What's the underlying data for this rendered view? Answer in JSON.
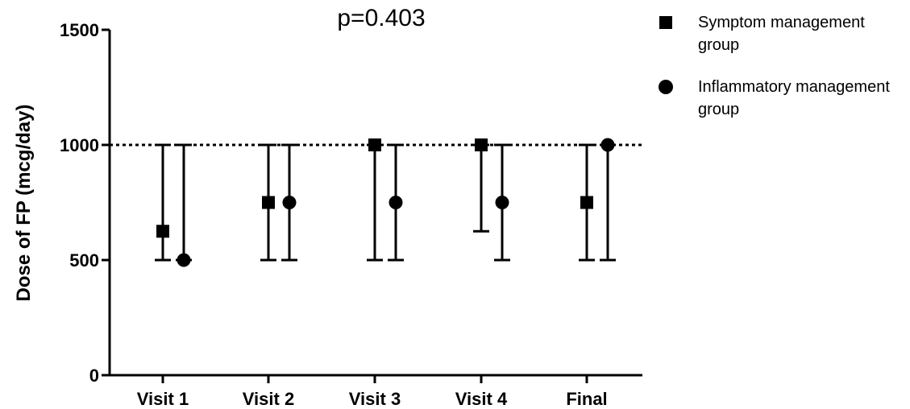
{
  "chart_data": {
    "type": "scatter",
    "title": "p=0.403",
    "ylabel": "Dose of FP (mcg/day)",
    "xlabel": "",
    "categories": [
      "Visit 1",
      "Visit 2",
      "Visit 3",
      "Visit 4",
      "Final"
    ],
    "ylim": [
      0,
      1500
    ],
    "yticks": [
      0,
      500,
      1000,
      1500
    ],
    "reference_line": {
      "y": 1000,
      "style": "dotted"
    },
    "grid": false,
    "legend_position": "top-right",
    "series": [
      {
        "name": "Symptom management group",
        "marker": "square",
        "values": [
          625,
          750,
          1000,
          1000,
          750
        ],
        "error_low": [
          500,
          500,
          500,
          625,
          500
        ],
        "error_high": [
          1000,
          1000,
          1000,
          1000,
          1000
        ]
      },
      {
        "name": "Inflammatory management group",
        "marker": "circle",
        "values": [
          500,
          750,
          750,
          750,
          1000
        ],
        "error_low": [
          500,
          500,
          500,
          500,
          500
        ],
        "error_high": [
          1000,
          1000,
          1000,
          1000,
          1000
        ]
      }
    ],
    "colors": {
      "marks": "#000000",
      "background": "#ffffff"
    }
  }
}
